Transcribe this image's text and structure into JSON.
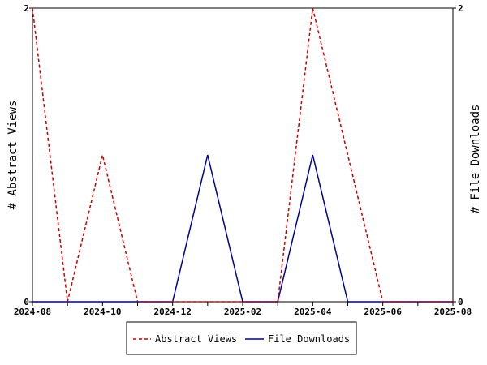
{
  "chart_data": {
    "type": "line",
    "x": [
      "2024-08",
      "2024-09",
      "2024-10",
      "2024-11",
      "2024-12",
      "2025-01",
      "2025-02",
      "2025-03",
      "2025-04",
      "2025-05",
      "2025-06",
      "2025-07",
      "2025-08"
    ],
    "x_tick_labels": [
      "2024-08",
      "2024-10",
      "2024-12",
      "2025-02",
      "2025-04",
      "2025-06",
      "2025-08"
    ],
    "series": [
      {
        "name": "Abstract Views",
        "color": "#cc0000",
        "style": "dashed",
        "axis": "left",
        "values": [
          2,
          0,
          1,
          0,
          0,
          0,
          0,
          0,
          2,
          1,
          0,
          0,
          0
        ]
      },
      {
        "name": "File Downloads",
        "color": "#000099",
        "style": "solid",
        "axis": "right",
        "values": [
          0,
          0,
          0,
          0,
          0,
          1,
          0,
          0,
          1,
          0,
          0,
          0,
          0
        ]
      }
    ],
    "ylabel": "# Abstract Views",
    "y2label": "# File Downloads",
    "ylim": [
      0,
      2
    ],
    "y2lim": [
      0,
      2
    ],
    "y_ticks": [
      "0",
      "2"
    ],
    "y2_ticks": [
      "0",
      "2"
    ],
    "grid": false,
    "legend_position": "bottom"
  }
}
